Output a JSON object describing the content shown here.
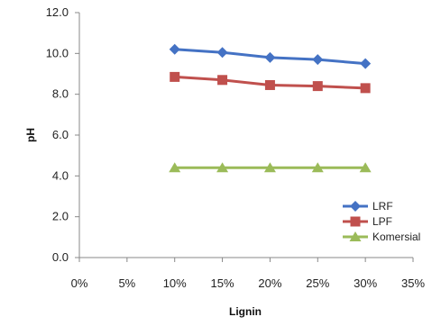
{
  "chart_data": {
    "type": "line",
    "title": "",
    "xlabel": "Lignin",
    "ylabel": "pH",
    "x_tick_labels": [
      "0%",
      "5%",
      "10%",
      "15%",
      "20%",
      "25%",
      "30%",
      "35%"
    ],
    "y_tick_labels": [
      "0.0",
      "2.0",
      "4.0",
      "6.0",
      "8.0",
      "10.0",
      "12.0"
    ],
    "xlim": [
      0,
      35
    ],
    "ylim": [
      0,
      12
    ],
    "x": [
      10,
      15,
      20,
      25,
      30
    ],
    "grid": false,
    "legend_position": "bottom-right",
    "series": [
      {
        "name": "LRF",
        "values": [
          10.2,
          10.05,
          9.8,
          9.7,
          9.5
        ],
        "color": "#4472C4",
        "marker": "diamond"
      },
      {
        "name": "LPF",
        "values": [
          8.85,
          8.7,
          8.45,
          8.4,
          8.3
        ],
        "color": "#C0504D",
        "marker": "square"
      },
      {
        "name": "Komersial",
        "values": [
          4.4,
          4.4,
          4.4,
          4.4,
          4.4
        ],
        "color": "#9BBB59",
        "marker": "triangle"
      }
    ]
  }
}
